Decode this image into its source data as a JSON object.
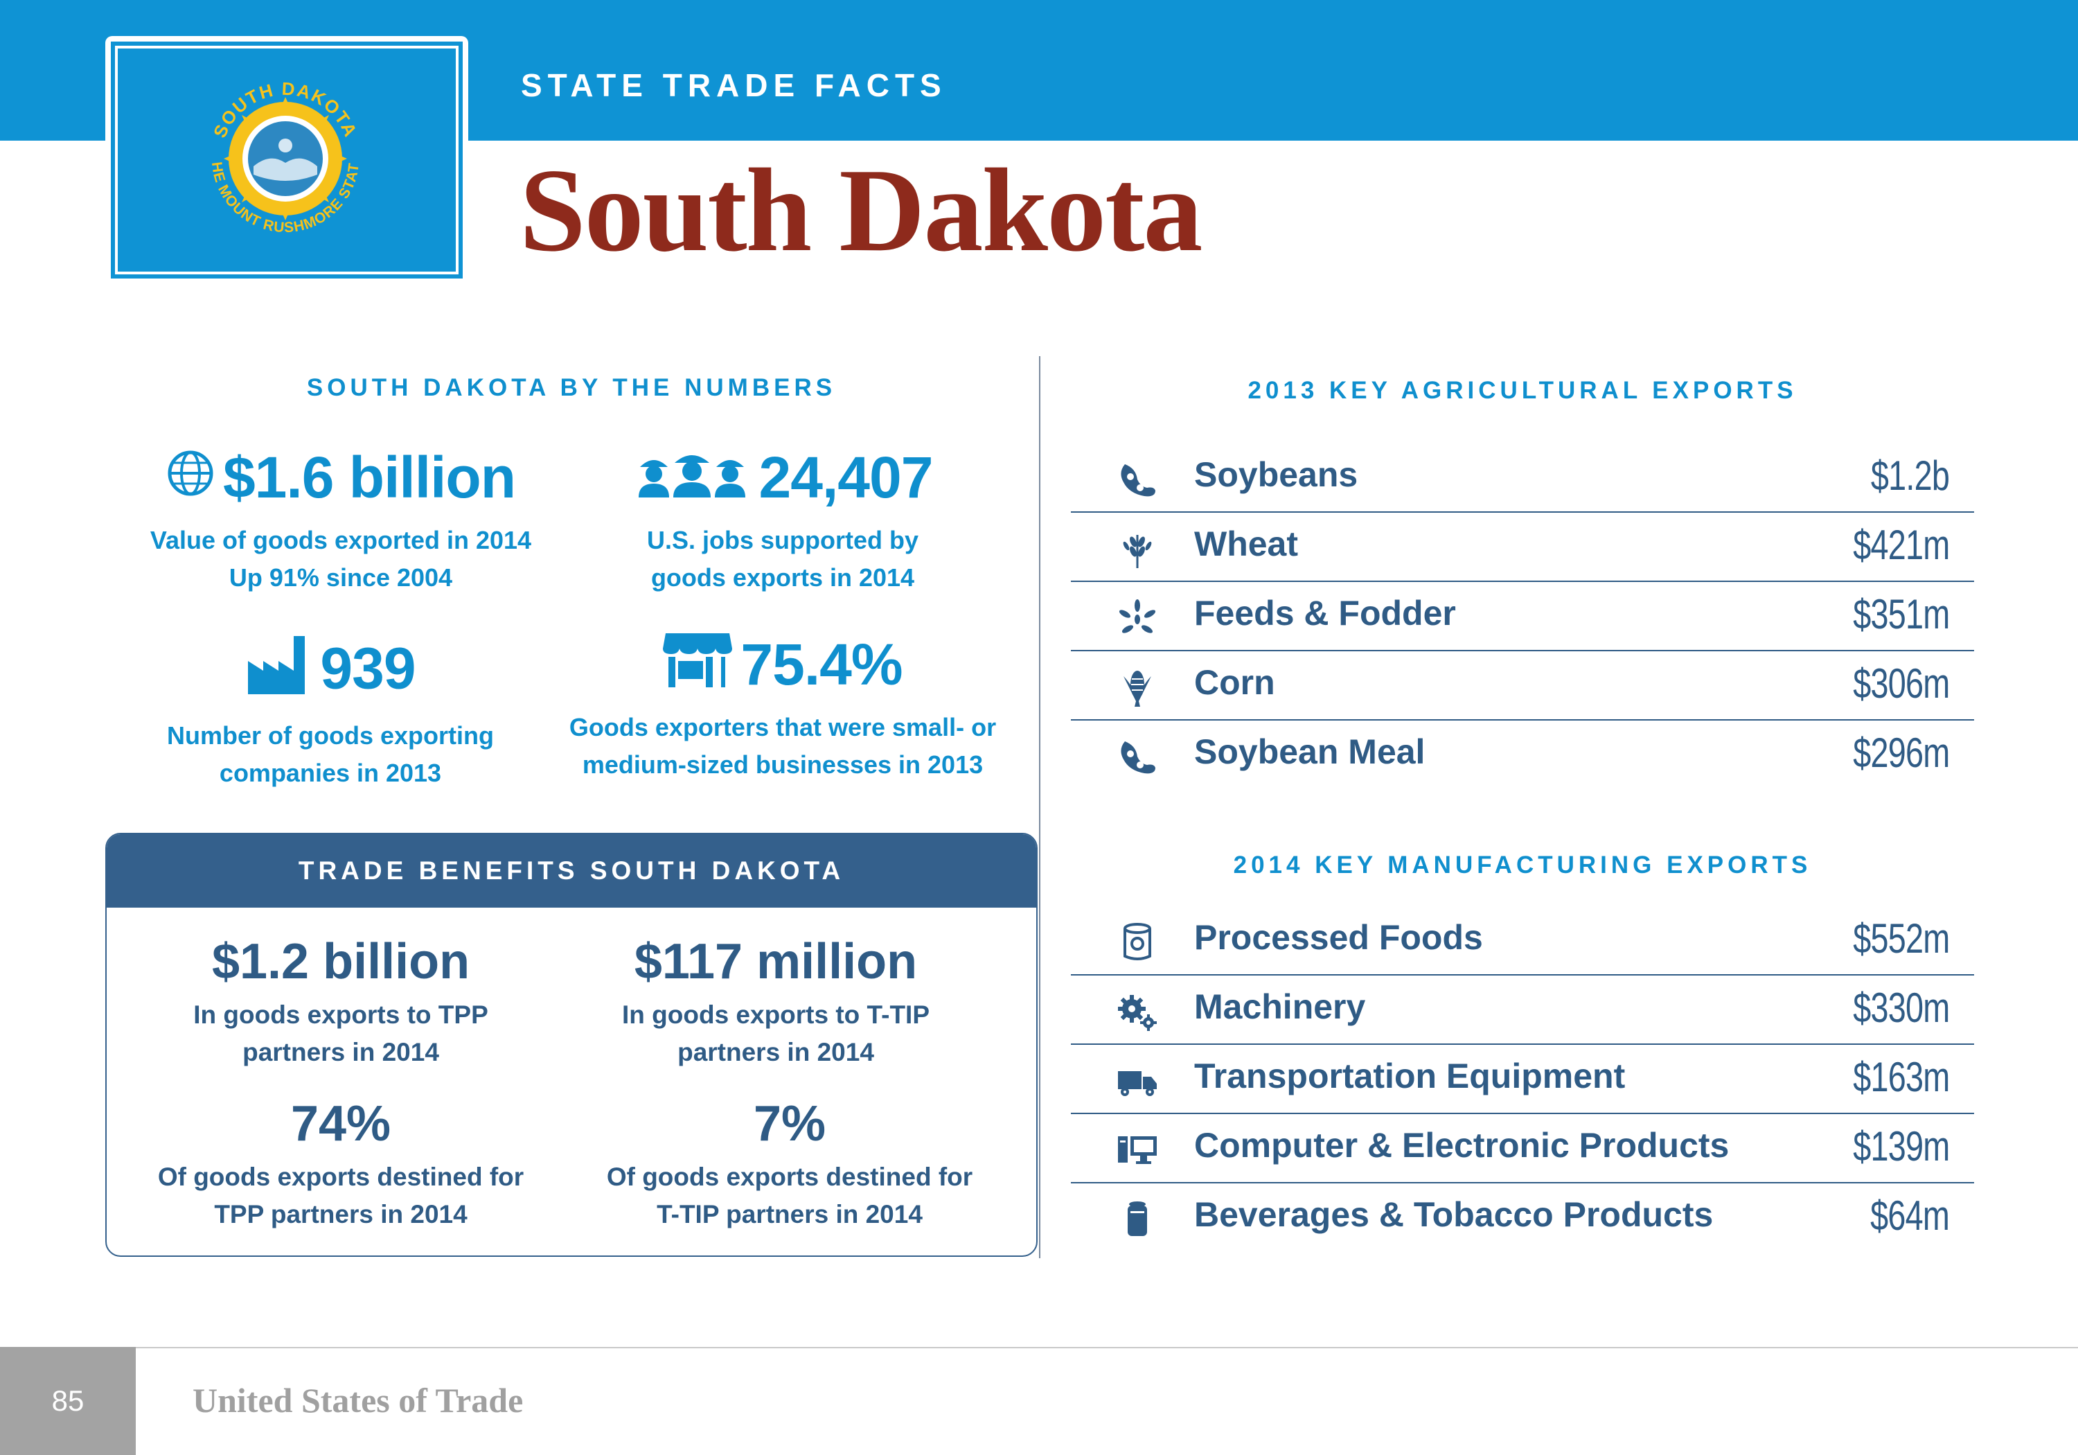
{
  "header": {
    "kicker": "STATE TRADE FACTS",
    "title": "South Dakota",
    "flag": {
      "seal_top": "SOUTH DAKOTA",
      "seal_bottom": "THE MOUNT RUSHMORE STATE",
      "colors": {
        "field": "#0f93d4",
        "sun": "#f6c21b",
        "seal": "#ffffff"
      }
    }
  },
  "numbers": {
    "heading": "SOUTH DAKOTA BY THE NUMBERS",
    "stats": [
      {
        "icon": "globe-icon",
        "value": "$1.6 billion",
        "line1": "Value of goods exported in 2014",
        "line2": "Up 91% since 2004"
      },
      {
        "icon": "workers-icon",
        "value": "24,407",
        "line1": "U.S. jobs supported by",
        "line2": "goods exports in 2014"
      },
      {
        "icon": "factory-icon",
        "value": "939",
        "line1": "Number of goods exporting",
        "line2": "companies in 2013"
      },
      {
        "icon": "storefront-icon",
        "value": "75.4%",
        "line1": "Goods exporters that were small- or",
        "line2": "medium-sized businesses in 2013"
      }
    ]
  },
  "benefits": {
    "heading": "TRADE BENEFITS SOUTH DAKOTA",
    "stats": [
      {
        "value": "$1.2 billion",
        "line1": "In goods exports to TPP",
        "line2": "partners in 2014"
      },
      {
        "value": "$117 million",
        "line1": "In goods exports to T-TIP",
        "line2": "partners in 2014"
      },
      {
        "value": "74%",
        "line1": "Of goods exports destined for",
        "line2": "TPP partners in 2014"
      },
      {
        "value": "7%",
        "line1": "Of goods exports destined for",
        "line2": "T-TIP partners in 2014"
      }
    ]
  },
  "agricultural": {
    "heading": "2013 KEY AGRICULTURAL EXPORTS",
    "items": [
      {
        "icon": "soybean-icon",
        "name": "Soybeans",
        "value": "$1.2b"
      },
      {
        "icon": "wheat-icon",
        "name": "Wheat",
        "value": "$421m"
      },
      {
        "icon": "grain-icon",
        "name": "Feeds & Fodder",
        "value": "$351m"
      },
      {
        "icon": "corn-icon",
        "name": "Corn",
        "value": "$306m"
      },
      {
        "icon": "soybean-icon",
        "name": "Soybean Meal",
        "value": "$296m"
      }
    ]
  },
  "manufacturing": {
    "heading": "2014 KEY MANUFACTURING EXPORTS",
    "items": [
      {
        "icon": "can-icon",
        "name": "Processed Foods",
        "value": "$552m"
      },
      {
        "icon": "gears-icon",
        "name": "Machinery",
        "value": "$330m"
      },
      {
        "icon": "truck-icon",
        "name": "Transportation Equipment",
        "value": "$163m"
      },
      {
        "icon": "computer-icon",
        "name": "Computer & Electronic Products",
        "value": "$139m"
      },
      {
        "icon": "beverage-can-icon",
        "name": "Beverages & Tobacco Products",
        "value": "$64m"
      }
    ]
  },
  "footer": {
    "page_number": "85",
    "publication": "United States of Trade"
  }
}
